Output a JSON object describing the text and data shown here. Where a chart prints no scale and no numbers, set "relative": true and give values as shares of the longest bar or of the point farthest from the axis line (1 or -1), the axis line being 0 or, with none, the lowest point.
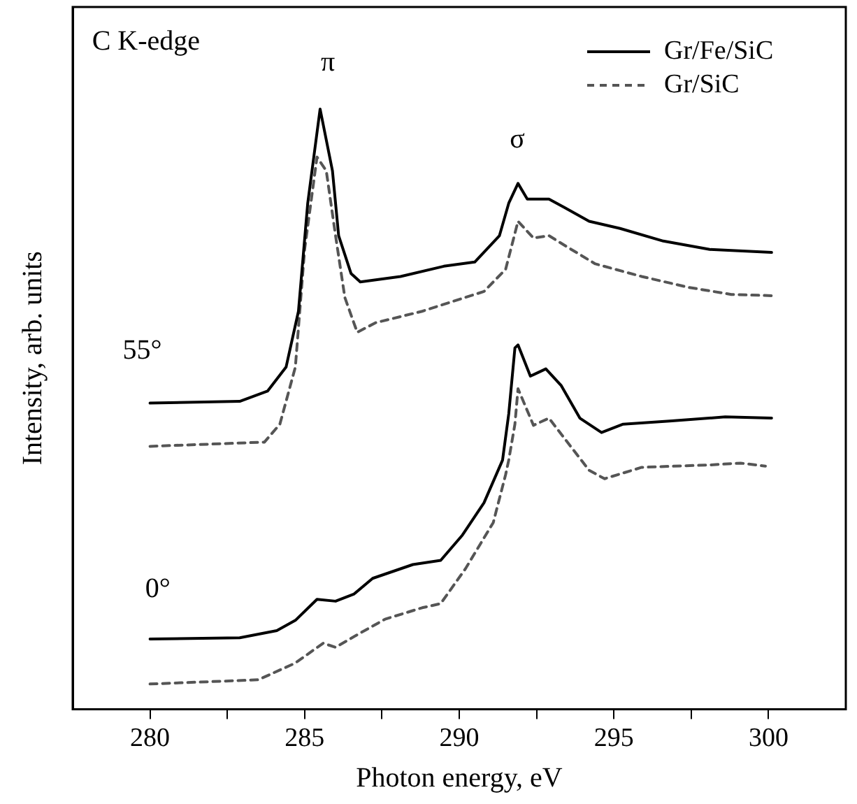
{
  "chart_data": {
    "type": "line",
    "relative": true,
    "xlabel": "Photon energy, eV",
    "ylabel": "Intensity, arb. units",
    "xlim": [
      277.5,
      302.5
    ],
    "xticks": [
      280,
      {
        "value": 282.5,
        "label": null
      },
      285,
      {
        "value": 287.5,
        "label": null
      },
      290,
      {
        "value": 292.5,
        "label": null
      },
      295,
      {
        "value": 297.5,
        "label": null
      },
      300
    ],
    "legend": "top right",
    "grid": false,
    "marker": "none",
    "annotations": [
      "C K-edge",
      "π",
      "σ",
      "55°",
      "0°"
    ],
    "series": [
      {
        "name": "Gr/Fe/SiC",
        "color": "#000000",
        "line_style": "solid",
        "x": [
          280,
          282.9,
          283.8,
          284.4,
          284.8,
          285.1,
          285.5,
          285.9,
          286.1,
          286.5,
          286.8,
          288.1,
          289.5,
          290.5,
          291.3,
          291.6,
          291.9,
          292.2,
          292.9,
          293.4,
          294.2,
          295.2,
          296.6,
          298.1,
          300.1
        ],
        "values": [
          0.51,
          0.513,
          0.53,
          0.57,
          0.663,
          0.843,
          1.0,
          0.897,
          0.789,
          0.726,
          0.712,
          0.721,
          0.738,
          0.745,
          0.789,
          0.843,
          0.876,
          0.85,
          0.85,
          0.836,
          0.813,
          0.801,
          0.78,
          0.766,
          0.761
        ]
      },
      {
        "name": "Gr/SiC",
        "color": "#555555",
        "line_style": "dashed",
        "x": [
          280,
          283.7,
          284.2,
          284.7,
          285.0,
          285.4,
          285.7,
          286.0,
          286.3,
          286.7,
          287.3,
          288.8,
          290.8,
          291.5,
          291.9,
          292.4,
          292.9,
          293.4,
          294.4,
          295.9,
          297.4,
          298.8,
          300.1
        ],
        "values": [
          0.438,
          0.445,
          0.475,
          0.57,
          0.766,
          0.92,
          0.897,
          0.789,
          0.686,
          0.628,
          0.644,
          0.663,
          0.696,
          0.733,
          0.813,
          0.785,
          0.789,
          0.773,
          0.742,
          0.721,
          0.703,
          0.691,
          0.689
        ]
      },
      {
        "color": "#000000",
        "line_style": "solid",
        "x": [
          280,
          282.9,
          284.1,
          284.7,
          285.4,
          286.0,
          286.6,
          287.2,
          288.5,
          289.4,
          290.1,
          290.8,
          291.4,
          291.6,
          291.8,
          291.9,
          292.3,
          292.8,
          293.3,
          293.9,
          294.6,
          295.3,
          296.8,
          298.6,
          300.1
        ],
        "values": [
          0.117,
          0.119,
          0.131,
          0.148,
          0.183,
          0.18,
          0.192,
          0.218,
          0.241,
          0.248,
          0.29,
          0.344,
          0.415,
          0.492,
          0.602,
          0.607,
          0.555,
          0.567,
          0.539,
          0.485,
          0.461,
          0.475,
          0.48,
          0.487,
          0.485
        ]
      },
      {
        "color": "#555555",
        "line_style": "dashed",
        "x": [
          280,
          283.5,
          284.7,
          285.6,
          286.0,
          286.7,
          287.6,
          288.8,
          289.4,
          290.2,
          291.1,
          291.5,
          291.6,
          291.8,
          291.9,
          292.4,
          292.9,
          293.6,
          294.2,
          294.7,
          295.9,
          298.1,
          299.1,
          299.9
        ],
        "values": [
          0.042,
          0.049,
          0.077,
          0.11,
          0.103,
          0.124,
          0.15,
          0.169,
          0.176,
          0.234,
          0.311,
          0.391,
          0.415,
          0.475,
          0.534,
          0.473,
          0.485,
          0.438,
          0.398,
          0.384,
          0.403,
          0.407,
          0.41,
          0.405
        ]
      }
    ]
  }
}
